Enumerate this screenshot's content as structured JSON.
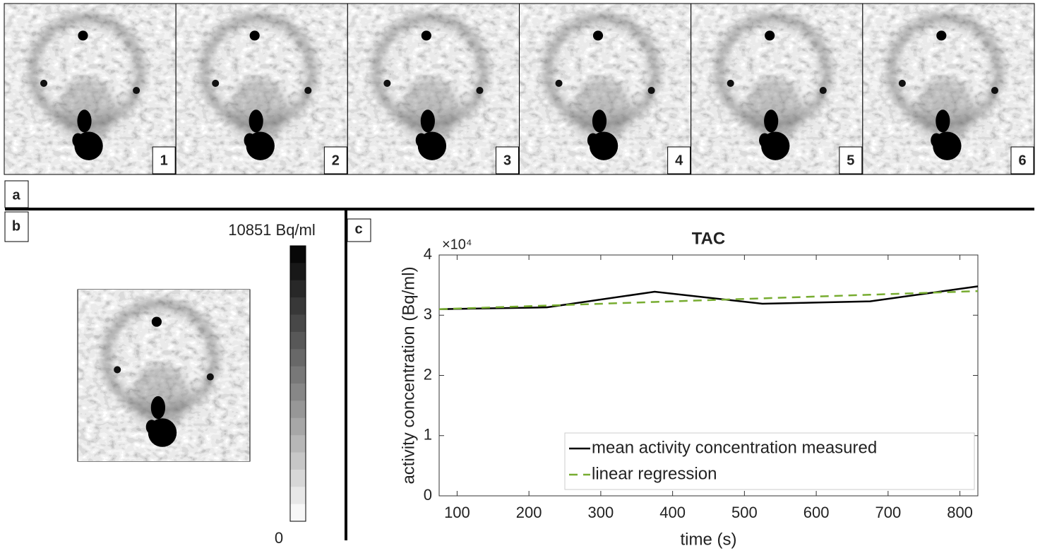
{
  "panel_labels": [
    "a",
    "b",
    "c"
  ],
  "frames": [
    "1",
    "2",
    "3",
    "4",
    "5",
    "6"
  ],
  "colorbar": {
    "max_label": "10851 Bq/ml",
    "min_label": "0"
  },
  "chart_data": {
    "type": "line",
    "title": "TAC",
    "xlabel": "time (s)",
    "ylabel": "activity concentration (Bq/ml)",
    "y_multiplier": "×10⁴",
    "x": [
      75,
      225,
      375,
      525,
      675,
      825
    ],
    "series": [
      {
        "name": "mean activity concentration measured",
        "color": "#000000",
        "dash": false,
        "values": [
          3.1,
          3.13,
          3.39,
          3.19,
          3.23,
          3.48
        ]
      },
      {
        "name": "linear regression",
        "color": "#77ac30",
        "dash": true,
        "values": [
          3.1,
          3.16,
          3.22,
          3.28,
          3.34,
          3.4
        ]
      }
    ],
    "xlim": [
      75,
      825
    ],
    "ylim": [
      0,
      4
    ],
    "xticks": [
      100,
      200,
      300,
      400,
      500,
      600,
      700,
      800
    ],
    "yticks": [
      0,
      1,
      2,
      3,
      4
    ],
    "grid": false,
    "legend": "lower right"
  }
}
